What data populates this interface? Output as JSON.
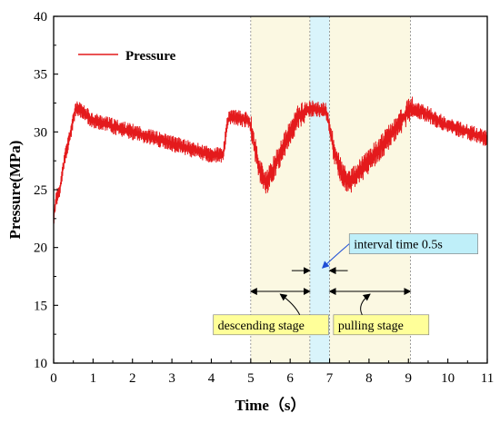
{
  "chart_data": {
    "type": "line",
    "xlabel": "Time（s）",
    "ylabel": "Pressure(MPa)",
    "xlim": [
      0,
      11
    ],
    "ylim": [
      10,
      40
    ],
    "xticks": [
      "0",
      "1",
      "2",
      "3",
      "4",
      "5",
      "6",
      "7",
      "8",
      "9",
      "10",
      "11"
    ],
    "yticks": [
      "10",
      "15",
      "20",
      "25",
      "30",
      "35",
      "40"
    ],
    "grid": false,
    "legend_position": "top-left",
    "series": [
      {
        "name": "Pressure",
        "color": "#e41a1c",
        "x": [
          0,
          0.05,
          0.15,
          0.3,
          0.5,
          0.55,
          0.7,
          1.0,
          2.0,
          3.0,
          3.5,
          4.0,
          4.3,
          4.4,
          4.45,
          4.5,
          4.8,
          4.95,
          5.0,
          5.2,
          5.4,
          5.8,
          6.2,
          6.5,
          6.6,
          6.9,
          7.0,
          7.1,
          7.3,
          7.5,
          8.0,
          8.5,
          9.0,
          9.1,
          9.5,
          10.0,
          10.5,
          11.0
        ],
        "y": [
          22.5,
          24,
          25,
          28,
          31,
          32,
          31.8,
          31,
          30,
          29,
          28.5,
          28,
          28,
          30.5,
          31.3,
          31.3,
          31.1,
          31,
          30.5,
          27,
          25.5,
          28.5,
          31.3,
          32,
          32,
          31.8,
          30.5,
          28.5,
          26.5,
          25.5,
          27.5,
          29.5,
          31.8,
          32,
          31.5,
          30.5,
          30,
          29.4
        ]
      }
    ],
    "shaded_regions": [
      {
        "x": [
          5,
          6.5
        ],
        "color": "#fbf8e2"
      },
      {
        "x": [
          6.5,
          7
        ],
        "color": "#d9f4fb"
      },
      {
        "x": [
          7,
          9.05
        ],
        "color": "#fbf8e2"
      }
    ],
    "annotations": [
      {
        "text": "descending stage",
        "arrow_from": 5,
        "arrow_to": 6.5,
        "arrow_y": 16.2,
        "label_x": 4.05,
        "label_y": 13,
        "box_color": "#ffff99"
      },
      {
        "text": "pulling stage",
        "arrow_from": 7,
        "arrow_to": 9.05,
        "arrow_y": 16.2,
        "label_x": 7.1,
        "label_y": 13,
        "box_color": "#ffff99"
      },
      {
        "text": "interval time 0.5s",
        "arrow_from": 6.5,
        "arrow_to": 7,
        "arrow_y": 18.0,
        "label_x": 7.5,
        "label_y": 20.0,
        "box_color": "#bfeff9"
      }
    ]
  }
}
